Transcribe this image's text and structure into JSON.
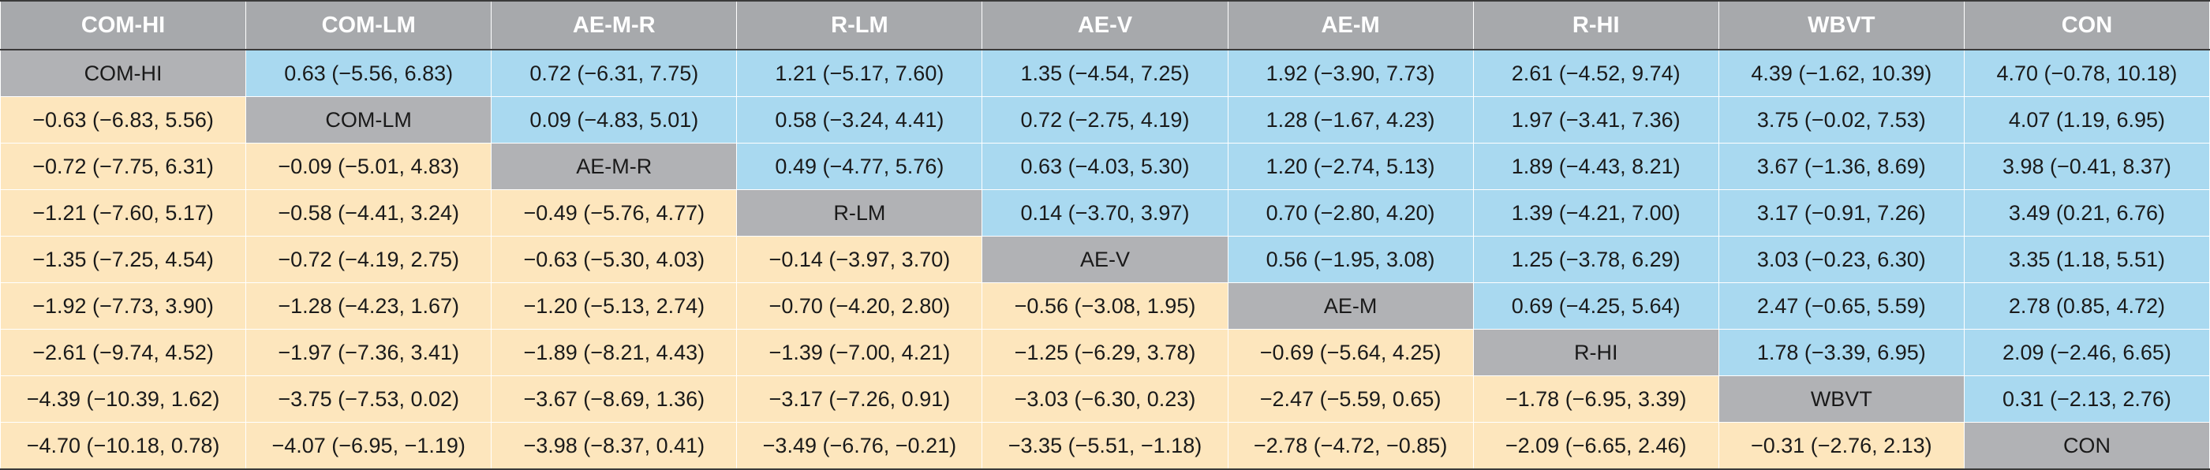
{
  "colors": {
    "header_bg": "#a7a9ac",
    "diagonal_bg": "#b1b2b5",
    "upper_bg": "#a9d9f0",
    "lower_bg": "#fde6bd"
  },
  "chart_data": {
    "type": "table",
    "columns": [
      "COM-HI",
      "COM-LM",
      "AE-M-R",
      "R-LM",
      "AE-V",
      "AE-M",
      "R-HI",
      "WBVT",
      "CON"
    ],
    "rows": [
      [
        "COM-HI",
        "0.63 (−5.56, 6.83)",
        "0.72 (−6.31, 7.75)",
        "1.21 (−5.17, 7.60)",
        "1.35 (−4.54, 7.25)",
        "1.92 (−3.90, 7.73)",
        "2.61 (−4.52, 9.74)",
        "4.39 (−1.62, 10.39)",
        "4.70 (−0.78, 10.18)"
      ],
      [
        "−0.63 (−6.83, 5.56)",
        "COM-LM",
        "0.09 (−4.83, 5.01)",
        "0.58 (−3.24, 4.41)",
        "0.72 (−2.75, 4.19)",
        "1.28 (−1.67, 4.23)",
        "1.97 (−3.41, 7.36)",
        "3.75 (−0.02, 7.53)",
        "4.07 (1.19, 6.95)"
      ],
      [
        "−0.72 (−7.75, 6.31)",
        "−0.09 (−5.01, 4.83)",
        "AE-M-R",
        "0.49 (−4.77, 5.76)",
        "0.63 (−4.03, 5.30)",
        "1.20 (−2.74, 5.13)",
        "1.89 (−4.43, 8.21)",
        "3.67 (−1.36, 8.69)",
        "3.98 (−0.41, 8.37)"
      ],
      [
        "−1.21 (−7.60, 5.17)",
        "−0.58 (−4.41, 3.24)",
        "−0.49 (−5.76, 4.77)",
        "R-LM",
        "0.14 (−3.70, 3.97)",
        "0.70 (−2.80, 4.20)",
        "1.39 (−4.21, 7.00)",
        "3.17 (−0.91, 7.26)",
        "3.49 (0.21, 6.76)"
      ],
      [
        "−1.35 (−7.25, 4.54)",
        "−0.72 (−4.19, 2.75)",
        "−0.63 (−5.30, 4.03)",
        "−0.14 (−3.97, 3.70)",
        "AE-V",
        "0.56 (−1.95, 3.08)",
        "1.25 (−3.78, 6.29)",
        "3.03 (−0.23, 6.30)",
        "3.35 (1.18, 5.51)"
      ],
      [
        "−1.92 (−7.73, 3.90)",
        "−1.28 (−4.23, 1.67)",
        "−1.20 (−5.13, 2.74)",
        "−0.70 (−4.20, 2.80)",
        "−0.56 (−3.08, 1.95)",
        "AE-M",
        "0.69 (−4.25, 5.64)",
        "2.47 (−0.65, 5.59)",
        "2.78 (0.85, 4.72)"
      ],
      [
        "−2.61 (−9.74, 4.52)",
        "−1.97 (−7.36, 3.41)",
        "−1.89 (−8.21, 4.43)",
        "−1.39 (−7.00, 4.21)",
        "−1.25 (−6.29, 3.78)",
        "−0.69 (−5.64, 4.25)",
        "R-HI",
        "1.78 (−3.39, 6.95)",
        "2.09 (−2.46, 6.65)"
      ],
      [
        "−4.39 (−10.39, 1.62)",
        "−3.75 (−7.53, 0.02)",
        "−3.67 (−8.69, 1.36)",
        "−3.17 (−7.26, 0.91)",
        "−3.03 (−6.30, 0.23)",
        "−2.47 (−5.59, 0.65)",
        "−1.78 (−6.95, 3.39)",
        "WBVT",
        "0.31 (−2.13, 2.76)"
      ],
      [
        "−4.70 (−10.18, 0.78)",
        "−4.07 (−6.95, −1.19)",
        "−3.98 (−8.37, 0.41)",
        "−3.49 (−6.76, −0.21)",
        "−3.35 (−5.51, −1.18)",
        "−2.78 (−4.72, −0.85)",
        "−2.09 (−6.65, 2.46)",
        "−0.31 (−2.76, 2.13)",
        "CON"
      ]
    ]
  }
}
